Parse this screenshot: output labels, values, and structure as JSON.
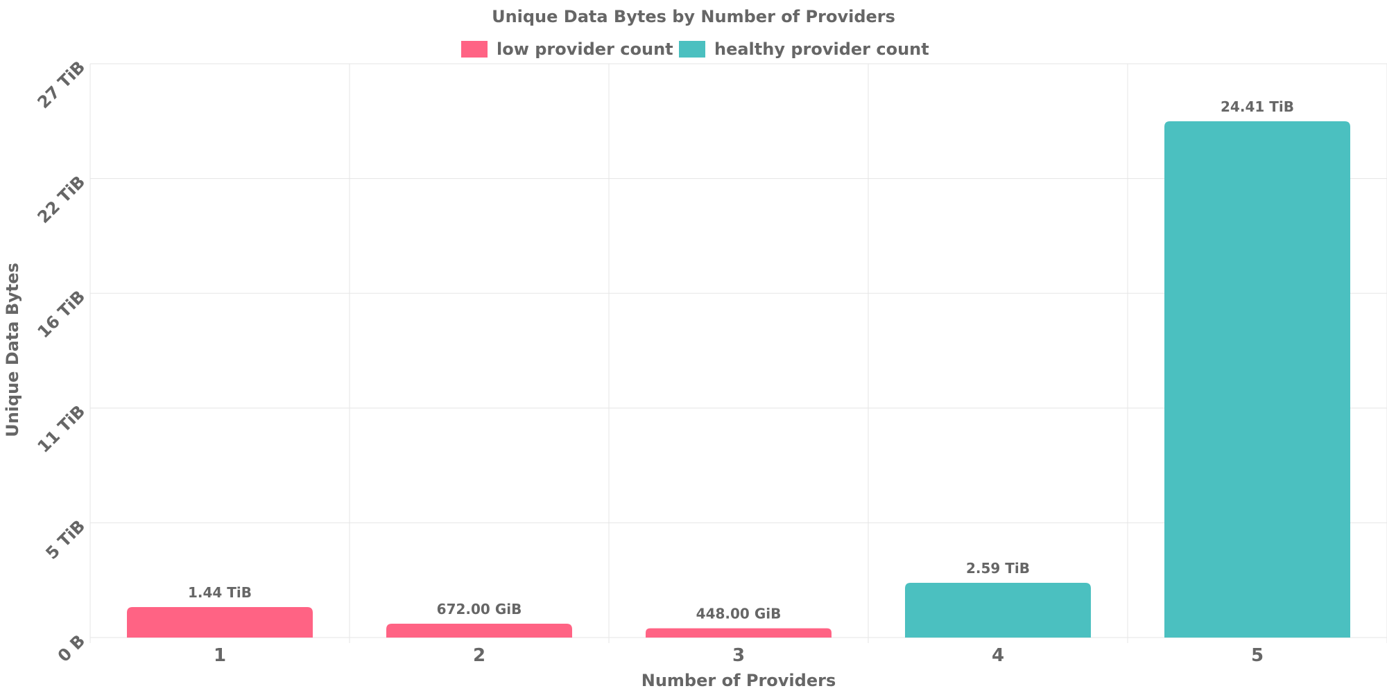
{
  "chart_data": {
    "type": "bar",
    "title": "Unique Data Bytes by Number of Providers",
    "xlabel": "Number of Providers",
    "ylabel": "Unique Data Bytes",
    "categories": [
      "1",
      "2",
      "3",
      "4",
      "5"
    ],
    "values_tib": [
      1.44,
      0.65625,
      0.4375,
      2.59,
      24.41
    ],
    "value_labels": [
      "1.44 TiB",
      "672.00 GiB",
      "448.00 GiB",
      "2.59 TiB",
      "24.41 TiB"
    ],
    "bar_series": [
      "low provider count",
      "low provider count",
      "low provider count",
      "healthy provider count",
      "healthy provider count"
    ],
    "legend": [
      {
        "name": "low provider count",
        "color": "#ff6384"
      },
      {
        "name": "healthy provider count",
        "color": "#4bc0c0"
      }
    ],
    "legend_position": "top-center",
    "ylim_tib": [
      0,
      27.13
    ],
    "yticks": [
      {
        "value": 0,
        "label": "0 B"
      },
      {
        "value": 5.4256,
        "label": "5 TiB"
      },
      {
        "value": 10.8512,
        "label": "11 TiB"
      },
      {
        "value": 16.2768,
        "label": "16 TiB"
      },
      {
        "value": 21.7024,
        "label": "22 TiB"
      },
      {
        "value": 27.128,
        "label": "27 TiB"
      }
    ],
    "grid": true
  }
}
